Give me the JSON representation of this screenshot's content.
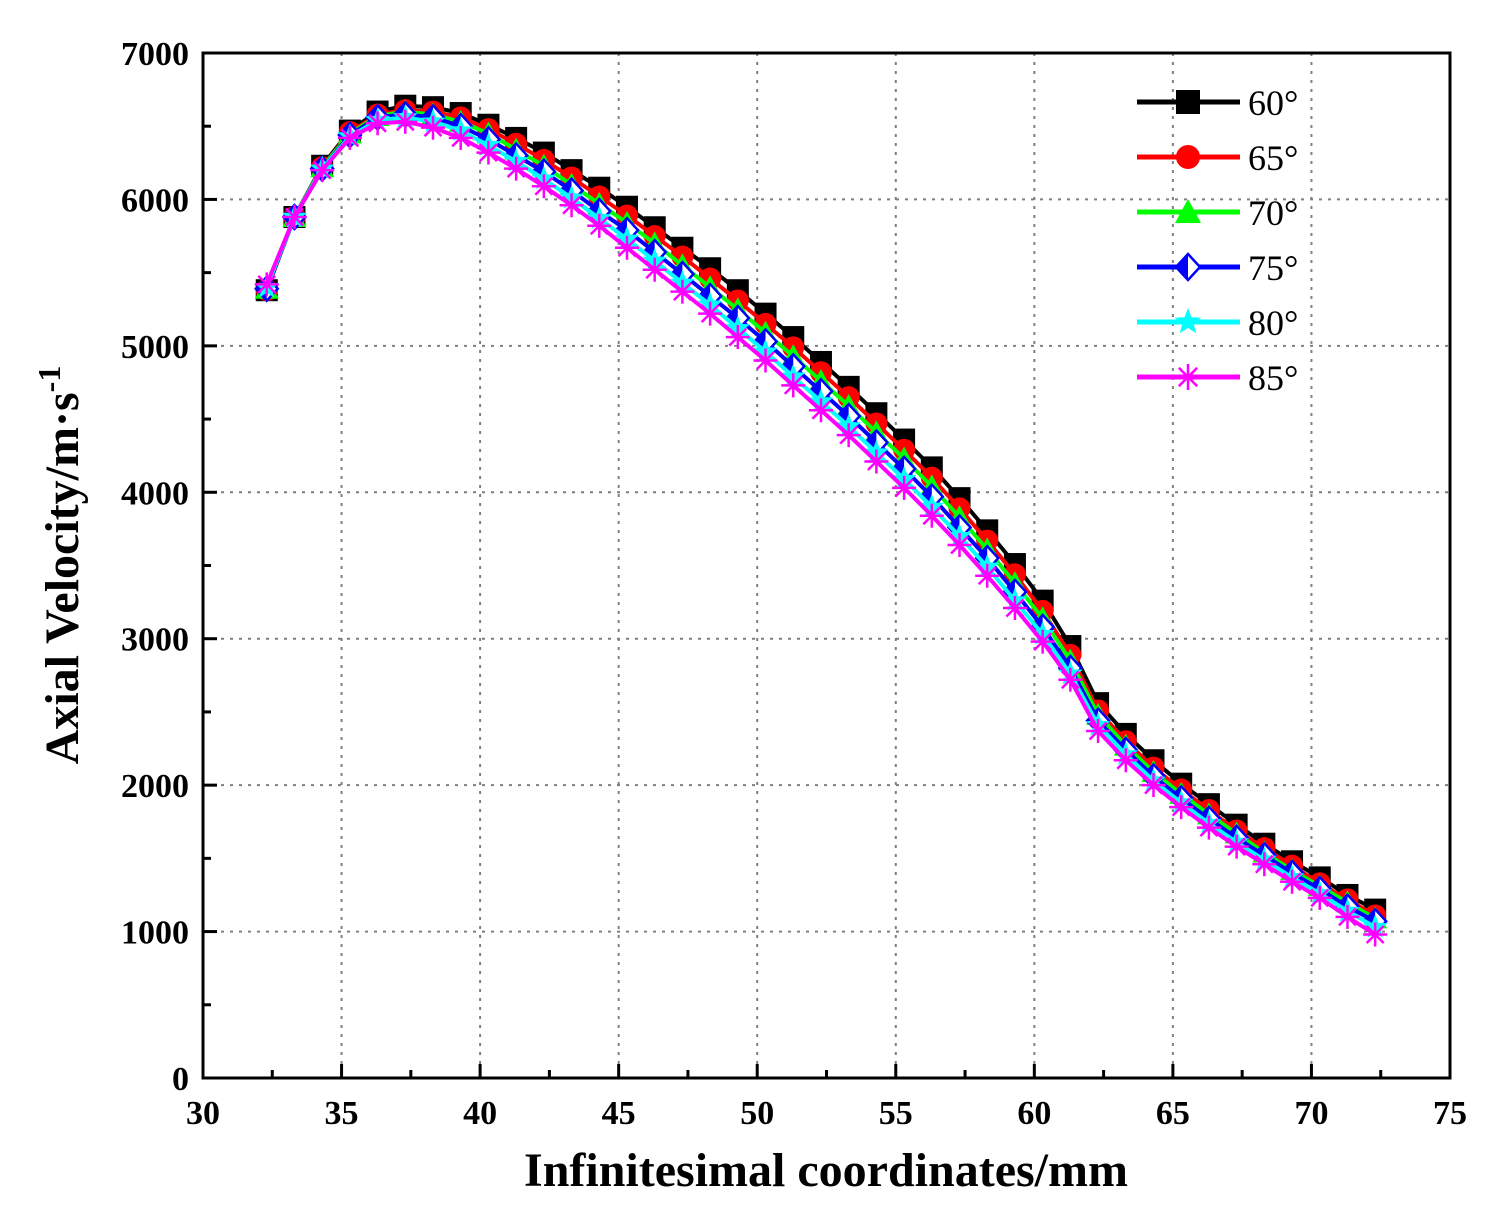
{
  "chart_data": {
    "type": "line",
    "title": "",
    "xlabel": "Infinitesimal coordinates/mm",
    "ylabel": "Axial Velocity/m·s",
    "ylabel_superscript": "-1",
    "xlim": [
      30,
      75
    ],
    "ylim": [
      0,
      7000
    ],
    "xticks": [
      30,
      35,
      40,
      45,
      50,
      55,
      60,
      65,
      70,
      75
    ],
    "yticks": [
      0,
      1000,
      2000,
      3000,
      4000,
      5000,
      6000,
      7000
    ],
    "xtick_labels": [
      "30",
      "35",
      "40",
      "45",
      "50",
      "55",
      "60",
      "65",
      "70",
      "75"
    ],
    "ytick_labels": [
      "0",
      "1000",
      "2000",
      "3000",
      "4000",
      "5000",
      "6000",
      "7000"
    ],
    "grid": true,
    "legend_position": "top-right",
    "x": [
      32.3,
      33.3,
      34.3,
      35.3,
      36.3,
      37.3,
      38.3,
      39.3,
      40.3,
      41.3,
      42.3,
      43.3,
      44.3,
      45.3,
      46.3,
      47.3,
      48.3,
      49.3,
      50.3,
      51.3,
      52.3,
      53.3,
      54.3,
      55.3,
      56.3,
      57.3,
      58.3,
      59.3,
      60.3,
      61.3,
      62.3,
      63.3,
      64.3,
      65.3,
      66.3,
      67.3,
      68.3,
      69.3,
      70.3,
      71.3,
      72.3
    ],
    "series": [
      {
        "name": "60°",
        "color": "#000000",
        "marker": "square",
        "values": [
          5380,
          5880,
          6230,
          6470,
          6600,
          6640,
          6630,
          6590,
          6510,
          6420,
          6320,
          6200,
          6080,
          5950,
          5810,
          5670,
          5530,
          5380,
          5220,
          5060,
          4890,
          4720,
          4540,
          4360,
          4170,
          3960,
          3740,
          3510,
          3260,
          2950,
          2560,
          2350,
          2170,
          2010,
          1870,
          1730,
          1600,
          1480,
          1370,
          1250,
          1150
        ]
      },
      {
        "name": "65°",
        "color": "#ff0000",
        "marker": "circle",
        "values": [
          5380,
          5880,
          6220,
          6460,
          6580,
          6610,
          6600,
          6560,
          6480,
          6380,
          6270,
          6150,
          6020,
          5890,
          5750,
          5610,
          5460,
          5310,
          5150,
          4990,
          4820,
          4650,
          4470,
          4290,
          4100,
          3890,
          3670,
          3440,
          3190,
          2890,
          2510,
          2300,
          2120,
          1970,
          1830,
          1690,
          1570,
          1450,
          1330,
          1220,
          1110
        ]
      },
      {
        "name": "70°",
        "color": "#00ff00",
        "marker": "triangle",
        "values": [
          5390,
          5880,
          6220,
          6450,
          6570,
          6600,
          6580,
          6530,
          6450,
          6340,
          6230,
          6100,
          5970,
          5840,
          5700,
          5550,
          5400,
          5250,
          5090,
          4930,
          4760,
          4590,
          4410,
          4230,
          4040,
          3830,
          3610,
          3380,
          3140,
          2850,
          2480,
          2270,
          2090,
          1940,
          1800,
          1670,
          1540,
          1420,
          1310,
          1200,
          1090
        ]
      },
      {
        "name": "75°",
        "color": "#0000ff",
        "marker": "diamond",
        "values": [
          5390,
          5880,
          6210,
          6440,
          6560,
          6580,
          6560,
          6500,
          6410,
          6300,
          6190,
          6060,
          5920,
          5790,
          5640,
          5490,
          5340,
          5190,
          5030,
          4860,
          4690,
          4520,
          4340,
          4160,
          3970,
          3760,
          3550,
          3320,
          3080,
          2800,
          2440,
          2240,
          2060,
          1910,
          1770,
          1640,
          1520,
          1400,
          1290,
          1170,
          1070
        ]
      },
      {
        "name": "80°",
        "color": "#00ffff",
        "marker": "star",
        "values": [
          5400,
          5880,
          6210,
          6430,
          6540,
          6560,
          6530,
          6470,
          6370,
          6260,
          6140,
          6010,
          5870,
          5730,
          5580,
          5430,
          5280,
          5120,
          4960,
          4790,
          4620,
          4450,
          4270,
          4090,
          3900,
          3700,
          3490,
          3260,
          3030,
          2760,
          2410,
          2210,
          2030,
          1880,
          1740,
          1610,
          1490,
          1370,
          1260,
          1140,
          1030
        ]
      },
      {
        "name": "85°",
        "color": "#ff00ff",
        "marker": "asterisk",
        "values": [
          5420,
          5880,
          6200,
          6420,
          6520,
          6530,
          6490,
          6420,
          6320,
          6210,
          6090,
          5960,
          5820,
          5670,
          5520,
          5370,
          5220,
          5060,
          4900,
          4730,
          4560,
          4390,
          4210,
          4030,
          3840,
          3640,
          3430,
          3210,
          2980,
          2720,
          2370,
          2170,
          2000,
          1850,
          1710,
          1580,
          1460,
          1340,
          1230,
          1100,
          980
        ]
      }
    ]
  }
}
